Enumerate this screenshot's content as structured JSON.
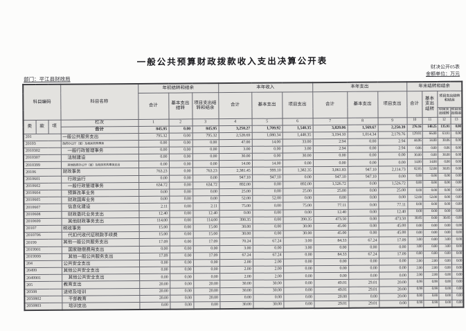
{
  "page": {
    "title": "一般公共预算财政拨款收入支出决算公开表",
    "form_code": "财决公开05表",
    "unit_label": "金额单位：万元",
    "department_label": "部门：平江县财政局"
  },
  "table": {
    "header": {
      "subject_code_label": "科目编码",
      "code_sub_labels": [
        "类",
        "款",
        "项"
      ],
      "subject_name_label": "科目名称",
      "groups": [
        {
          "label": "年初结转和结余",
          "cols": [
            "合计",
            "基本支出结转",
            "项目支出结转和结余"
          ]
        },
        {
          "label": "本年收入",
          "cols": [
            "合计",
            "基本支出",
            "项目支出"
          ]
        },
        {
          "label": "本年支出",
          "cols": [
            "合计",
            "基本支出",
            "项目支出"
          ]
        },
        {
          "label": "年末结转和结余",
          "cols": [
            "合计",
            "基本支出结转"
          ],
          "sub_group": {
            "label": "项目支出结转和结余",
            "cols": [
              "项目支出结转",
              "项目支出结余"
            ]
          }
        }
      ],
      "row_index_label": "栏次",
      "col_numbers": [
        "1",
        "2",
        "3",
        "4",
        "5",
        "6",
        "7",
        "8",
        "9",
        "10",
        "11",
        "12",
        "13"
      ]
    },
    "total_row": {
      "label": "合计",
      "values": [
        "845.95",
        "0.00",
        "845.95",
        "3,250.27",
        "1,709.92",
        "1,540.35",
        "3,820.06",
        "1,569.67",
        "2,250.39",
        "276.16",
        "140.25",
        "135.91",
        "0.00"
      ]
    },
    "rows": [
      {
        "code": "201",
        "name": "一般公共服务支出",
        "indent": 0,
        "small": false,
        "values": [
          "795.32",
          "0.00",
          "795.32",
          "2,528.69",
          "1,080.34",
          "1,448.35",
          "3,194.10",
          "1,014.34",
          "2,179.76",
          "129.91",
          "66.00",
          "63.91",
          "0.00"
        ]
      },
      {
        "code": "20103",
        "name": "政府办公厅（室）及相关机构事务",
        "indent": 0,
        "small": true,
        "values": [
          "0.00",
          "0.00",
          "0.00",
          "47.00",
          "14.00",
          "33.00",
          "2.94",
          "0.00",
          "2.94",
          "44.06",
          "14.00",
          "30.06",
          "0.00"
        ]
      },
      {
        "code": "2010302",
        "name": "一般行政管理事务",
        "indent": 1,
        "small": false,
        "values": [
          "0.00",
          "0.00",
          "0.00",
          "3.00",
          "0.00",
          "3.00",
          "2.94",
          "0.00",
          "2.94",
          "0.06",
          "0.00",
          "0.06",
          "0.00"
        ]
      },
      {
        "code": "2010307",
        "name": "法制建设",
        "indent": 1,
        "small": false,
        "values": [
          "0.00",
          "0.00",
          "0.00",
          "30.00",
          "0.00",
          "30.00",
          "0.00",
          "0.00",
          "0.00",
          "30.00",
          "0.00",
          "30.00",
          "0.00"
        ]
      },
      {
        "code": "2010399",
        "name": "其他政府办公厅（室）及相关机构事务支出",
        "indent": 1,
        "small": true,
        "values": [
          "0.00",
          "0.00",
          "0.00",
          "14.00",
          "14.00",
          "0.00",
          "0.00",
          "0.00",
          "0.00",
          "14.00",
          "14.00",
          "0.00",
          "0.00"
        ]
      },
      {
        "code": "20106",
        "name": "财政事务",
        "indent": 0,
        "small": false,
        "values": [
          "763.23",
          "0.00",
          "763.23",
          "2,381.45",
          "999.10",
          "1,382.35",
          "3,061.83",
          "947.10",
          "2,114.73",
          "82.85",
          "52.00",
          "30.85",
          "0.00"
        ]
      },
      {
        "code": "2010601",
        "name": "行政运行",
        "indent": 1,
        "small": false,
        "values": [
          "0.00",
          "0.00",
          "0.00",
          "947.10",
          "947.10",
          "0.00",
          "947.10",
          "947.10",
          "0.00",
          "0.00",
          "0.00",
          "0.00",
          "0.00"
        ]
      },
      {
        "code": "2010602",
        "name": "一般行政管理事务",
        "indent": 1,
        "small": false,
        "values": [
          "634.72",
          "0.00",
          "634.72",
          "892.00",
          "0.00",
          "892.00",
          "1,526.72",
          "0.00",
          "1,526.72",
          "0.00",
          "0.00",
          "0.00",
          "0.00"
        ]
      },
      {
        "code": "2010604",
        "name": "预算改革业务",
        "indent": 1,
        "small": false,
        "values": [
          "0.00",
          "0.00",
          "0.00",
          "25.00",
          "0.00",
          "25.00",
          "25.00",
          "0.00",
          "25.00",
          "0.00",
          "0.00",
          "0.00",
          "0.00"
        ]
      },
      {
        "code": "2010605",
        "name": "财政国库业务",
        "indent": 1,
        "small": false,
        "values": [
          "0.00",
          "0.00",
          "0.00",
          "52.00",
          "52.00",
          "0.00",
          "0.00",
          "0.00",
          "0.00",
          "52.00",
          "52.00",
          "0.00",
          "0.00"
        ]
      },
      {
        "code": "2010607",
        "name": "信息化建设",
        "indent": 1,
        "small": false,
        "values": [
          "2.11",
          "0.00",
          "2.11",
          "75.00",
          "0.00",
          "75.00",
          "77.11",
          "0.00",
          "77.11",
          "0.00",
          "0.00",
          "0.00",
          "0.00"
        ]
      },
      {
        "code": "2010608",
        "name": "财政委托业务支出",
        "indent": 1,
        "small": false,
        "values": [
          "12.40",
          "0.00",
          "12.40",
          "0.00",
          "0.00",
          "0.00",
          "12.40",
          "0.00",
          "12.40",
          "0.00",
          "0.00",
          "0.00",
          "0.00"
        ]
      },
      {
        "code": "2010699",
        "name": "其他财政事务支出",
        "indent": 1,
        "small": false,
        "values": [
          "114.00",
          "0.00",
          "114.00",
          "390.35",
          "0.00",
          "390.35",
          "473.50",
          "0.00",
          "473.50",
          "30.85",
          "0.00",
          "30.85",
          "0.00"
        ]
      },
      {
        "code": "20107",
        "name": "税收事务",
        "indent": 0,
        "small": false,
        "values": [
          "15.00",
          "0.00",
          "15.00",
          "30.00",
          "0.00",
          "30.00",
          "45.00",
          "0.00",
          "45.00",
          "0.00",
          "0.00",
          "0.00",
          "0.00"
        ]
      },
      {
        "code": "2010706",
        "name": "代扣代收代征税款手续费",
        "indent": 1,
        "small": false,
        "values": [
          "15.00",
          "0.00",
          "15.00",
          "30.00",
          "0.00",
          "30.00",
          "45.00",
          "0.00",
          "45.00",
          "0.00",
          "0.00",
          "0.00",
          "0.00"
        ]
      },
      {
        "code": "20199",
        "name": "其他一般公共服务支出",
        "indent": 0,
        "small": false,
        "values": [
          "17.09",
          "0.00",
          "17.09",
          "70.24",
          "67.24",
          "3.00",
          "84.33",
          "67.24",
          "17.09",
          "3.00",
          "0.00",
          "3.00",
          "0.00"
        ]
      },
      {
        "code": "2019901",
        "name": "国家赔偿费用支出",
        "indent": 1,
        "small": false,
        "values": [
          "0.00",
          "0.00",
          "0.00",
          "3.00",
          "0.00",
          "3.00",
          "0.00",
          "0.00",
          "0.00",
          "3.00",
          "0.00",
          "3.00",
          "0.00"
        ]
      },
      {
        "code": "2019999",
        "name": "其他一般公共服务支出",
        "indent": 1,
        "small": false,
        "values": [
          "17.09",
          "0.00",
          "17.09",
          "67.24",
          "67.24",
          "0.00",
          "84.33",
          "67.24",
          "17.09",
          "0.00",
          "0.00",
          "0.00",
          "0.00"
        ]
      },
      {
        "code": "204",
        "name": "公共安全支出",
        "indent": 0,
        "small": false,
        "values": [
          "0.00",
          "0.00",
          "0.00",
          "2.00",
          "2.00",
          "0.00",
          "0.00",
          "0.00",
          "0.00",
          "2.00",
          "2.00",
          "0.00",
          "0.00"
        ]
      },
      {
        "code": "20499",
        "name": "其他公共安全支出",
        "indent": 0,
        "small": false,
        "values": [
          "0.00",
          "0.00",
          "0.00",
          "2.00",
          "2.00",
          "0.00",
          "0.00",
          "0.00",
          "0.00",
          "2.00",
          "2.00",
          "0.00",
          "0.00"
        ]
      },
      {
        "code": "2049901",
        "name": "其他公共安全支出",
        "indent": 1,
        "small": false,
        "values": [
          "0.00",
          "0.00",
          "0.00",
          "2.00",
          "2.00",
          "0.00",
          "0.00",
          "0.00",
          "0.00",
          "2.00",
          "2.00",
          "0.00",
          "0.00"
        ]
      },
      {
        "code": "205",
        "name": "教育支出",
        "indent": 0,
        "small": false,
        "values": [
          "20.00",
          "0.00",
          "20.00",
          "30.00",
          "30.00",
          "0.00",
          "49.01",
          "29.01",
          "20.00",
          "0.99",
          "0.99",
          "0.00",
          "0.00"
        ]
      },
      {
        "code": "20508",
        "name": "进修及培训",
        "indent": 0,
        "small": false,
        "values": [
          "20.00",
          "0.00",
          "20.00",
          "30.00",
          "30.00",
          "0.00",
          "49.01",
          "29.01",
          "20.00",
          "0.99",
          "0.99",
          "0.00",
          "0.00"
        ]
      },
      {
        "code": "2050802",
        "name": "干部教育",
        "indent": 1,
        "small": false,
        "values": [
          "20.00",
          "0.00",
          "20.00",
          "0.00",
          "0.00",
          "0.00",
          "20.00",
          "0.00",
          "20.00",
          "0.00",
          "0.00",
          "0.00",
          "0.00"
        ]
      },
      {
        "code": "2050803",
        "name": "培训支出",
        "indent": 1,
        "small": false,
        "values": [
          "0.00",
          "0.00",
          "0.00",
          "30.00",
          "30.00",
          "0.00",
          "29.01",
          "29.01",
          "0.00",
          "0.99",
          "0.99",
          "0.00",
          "0.00"
        ]
      }
    ]
  }
}
